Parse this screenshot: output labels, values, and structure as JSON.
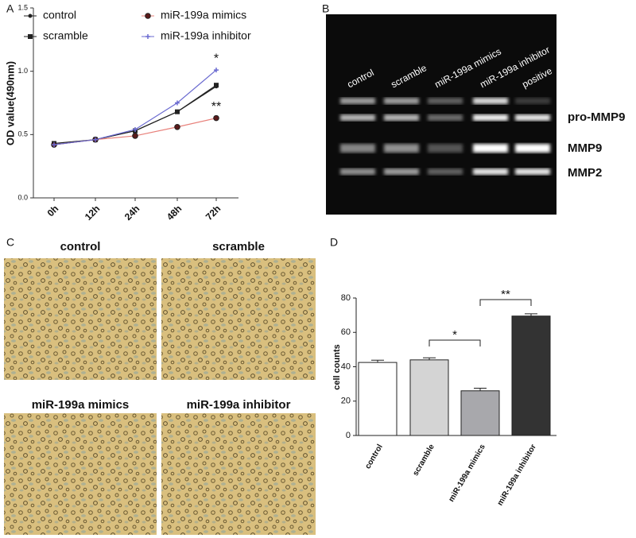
{
  "panel_labels": [
    "A",
    "B",
    "C",
    "D"
  ],
  "chart_data": [
    {
      "type": "line",
      "ylabel": "OD value(490nm)",
      "categories": [
        "0h",
        "12h",
        "24h",
        "48h",
        "72h"
      ],
      "ylim": [
        0,
        1.5
      ],
      "yticks": [
        {
          "value": 0,
          "label": "0.0"
        },
        {
          "value": 0.5,
          "label": "0.5"
        },
        {
          "value": 1,
          "label": "1.0"
        },
        {
          "value": 1.5,
          "label": "1.5"
        }
      ],
      "series": [
        {
          "name": "control",
          "color": "#222222",
          "marker": "circle",
          "values": [
            0.42,
            0.46,
            0.53,
            0.68,
            0.88
          ]
        },
        {
          "name": "scramble",
          "color": "#222222",
          "marker": "square",
          "values": [
            0.43,
            0.46,
            0.53,
            0.68,
            0.89
          ]
        },
        {
          "name": "miR-199a mimics",
          "color": "#e8807a",
          "marker": "dot",
          "values": [
            0.42,
            0.46,
            0.49,
            0.56,
            0.63
          ]
        },
        {
          "name": "miR-199a inhibitor",
          "color": "#6a6ad0",
          "marker": "cross",
          "values": [
            0.42,
            0.46,
            0.54,
            0.75,
            1.01
          ]
        }
      ],
      "annotations": [
        "*",
        "**"
      ]
    },
    {
      "type": "bar",
      "ylabel": "cell counts",
      "categories": [
        "control",
        "scramble",
        "miR-199a mimics",
        "miR-199a inhibitor"
      ],
      "values": [
        42.5,
        44,
        26,
        69.5
      ],
      "errors": [
        1.3,
        1.2,
        1.5,
        1.3
      ],
      "colors": [
        "#ffffff",
        "#d4d4d4",
        "#a8a8ac",
        "#333333"
      ],
      "ylim": [
        0,
        80
      ],
      "yticks": [
        0,
        20,
        40,
        60,
        80
      ],
      "annotations": [
        "*",
        "**"
      ]
    }
  ],
  "gel": {
    "lanes": [
      "control",
      "scramble",
      "miR-199a mimics",
      "miR-199a inhibitor",
      "positive"
    ],
    "bands": [
      "pro-MMP9",
      "MMP9",
      "MMP2"
    ]
  },
  "micrographs": {
    "titles": [
      "control",
      "scramble",
      "miR-199a mimics",
      "miR-199a inhibitor"
    ]
  }
}
